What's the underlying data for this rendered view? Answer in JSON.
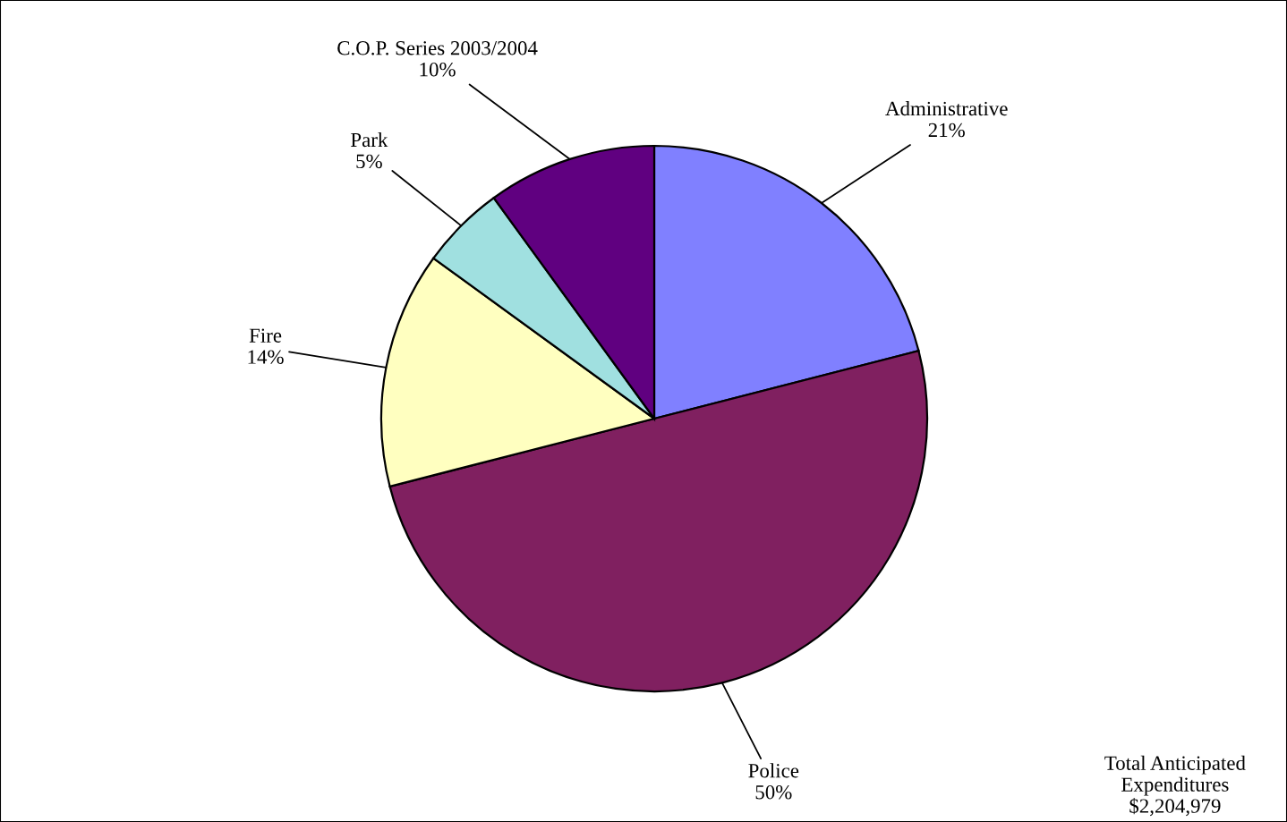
{
  "chart_data": {
    "type": "pie",
    "categories": [
      "Administrative",
      "Police",
      "Fire",
      "Park",
      "C.O.P. Series 2003/2004"
    ],
    "values": [
      21,
      50,
      14,
      5,
      10
    ],
    "value_labels": [
      "21%",
      "50%",
      "14%",
      "5%",
      "10%"
    ],
    "colors": [
      "#8080ff",
      "#802060",
      "#ffffc0",
      "#a0e0e0",
      "#600080"
    ],
    "annotations": [
      "Total Anticipated\nExpenditures\n$2,204,979"
    ]
  }
}
